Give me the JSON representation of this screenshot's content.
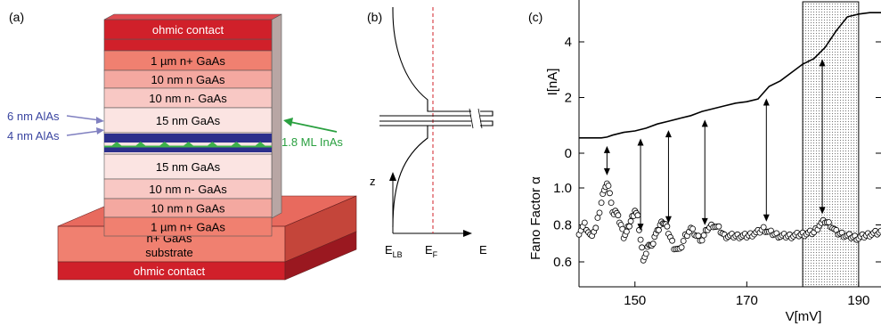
{
  "panel_a": {
    "label": "(a)",
    "layers": [
      "ohmic contact",
      "1 µm n+ GaAs",
      "10 nm n GaAs",
      "10 nm n- GaAs",
      "15 nm GaAs",
      "15 nm GaAs",
      "10 nm n- GaAs",
      "10 nm n GaAs",
      "1 µm n+ GaAs"
    ],
    "substrate_line1": "n+ GaAs",
    "substrate_line2": "substrate",
    "bottom_contact": "ohmic contact",
    "callout_alas_top": "6 nm AlAs",
    "callout_alas_bottom": "4 nm AlAs",
    "callout_inas": "1.8 ML InAs",
    "colors": {
      "contact": "#d0202a",
      "n_plus": "#f08070",
      "n": "#f4a8a0",
      "n_minus": "#f8c8c4",
      "intrinsic": "#fbe4e2",
      "alas": "#2c2f8c",
      "inas": "#3cb04a",
      "callout_blue": "#3a45a0",
      "callout_green": "#2aa040"
    }
  },
  "panel_b": {
    "label": "(b)",
    "axis_z": "z",
    "axis_e": "E",
    "label_elb": "E",
    "label_elb_sub": "LB",
    "label_ef": "E",
    "label_ef_sub": "F"
  },
  "chart_data": {
    "type": "line",
    "label": "(c)",
    "xlabel": "V[mV]",
    "x_ticks": [
      150,
      170,
      190
    ],
    "xlim": [
      140,
      194
    ],
    "shaded_region": [
      180,
      190
    ],
    "current": {
      "ylabel": "I[nA]",
      "y_ticks": [
        0,
        2,
        4
      ],
      "ylim": [
        0,
        5.4
      ],
      "x": [
        140,
        142,
        144,
        145,
        146,
        148,
        150,
        152,
        154,
        156,
        158,
        160,
        162,
        164,
        166,
        168,
        170,
        172,
        174,
        176,
        178,
        180,
        182,
        184,
        186,
        188,
        190,
        192,
        194
      ],
      "y": [
        0.55,
        0.55,
        0.55,
        0.58,
        0.65,
        0.75,
        0.8,
        0.9,
        1.05,
        1.15,
        1.25,
        1.35,
        1.5,
        1.6,
        1.7,
        1.8,
        1.85,
        1.95,
        2.4,
        2.6,
        2.9,
        3.2,
        3.4,
        3.8,
        4.4,
        4.9,
        5.0,
        5.05,
        5.05
      ]
    },
    "fano": {
      "ylabel": "Fano Factor α",
      "y_ticks": [
        0.6,
        0.8,
        1.0
      ],
      "ylim": [
        0.48,
        1.15
      ],
      "x": [
        140,
        141,
        142,
        143,
        144,
        144.5,
        145,
        145.5,
        146,
        146.5,
        147,
        147.5,
        148,
        148.5,
        149,
        149.5,
        150,
        150.5,
        151,
        151.5,
        152,
        152.5,
        153,
        153.5,
        154,
        154.5,
        155,
        155.5,
        156,
        157,
        158,
        159,
        160,
        161,
        162,
        163,
        164,
        165,
        166,
        168,
        170,
        172,
        173,
        174,
        176,
        178,
        180,
        182,
        183,
        184,
        185,
        186,
        188,
        190,
        192,
        194
      ],
      "y": [
        0.76,
        0.8,
        0.74,
        0.78,
        0.92,
        1.0,
        1.02,
        0.98,
        0.86,
        0.88,
        0.84,
        0.8,
        0.74,
        0.76,
        0.8,
        0.84,
        0.88,
        0.84,
        0.72,
        0.62,
        0.64,
        0.7,
        0.68,
        0.74,
        0.76,
        0.8,
        0.82,
        0.8,
        0.76,
        0.68,
        0.66,
        0.74,
        0.78,
        0.74,
        0.72,
        0.78,
        0.8,
        0.78,
        0.74,
        0.74,
        0.74,
        0.76,
        0.78,
        0.76,
        0.74,
        0.74,
        0.75,
        0.76,
        0.8,
        0.82,
        0.8,
        0.76,
        0.74,
        0.73,
        0.75,
        0.76
      ]
    },
    "arrows_x": [
      145,
      151,
      156,
      162.5,
      173.5,
      183.5
    ]
  }
}
